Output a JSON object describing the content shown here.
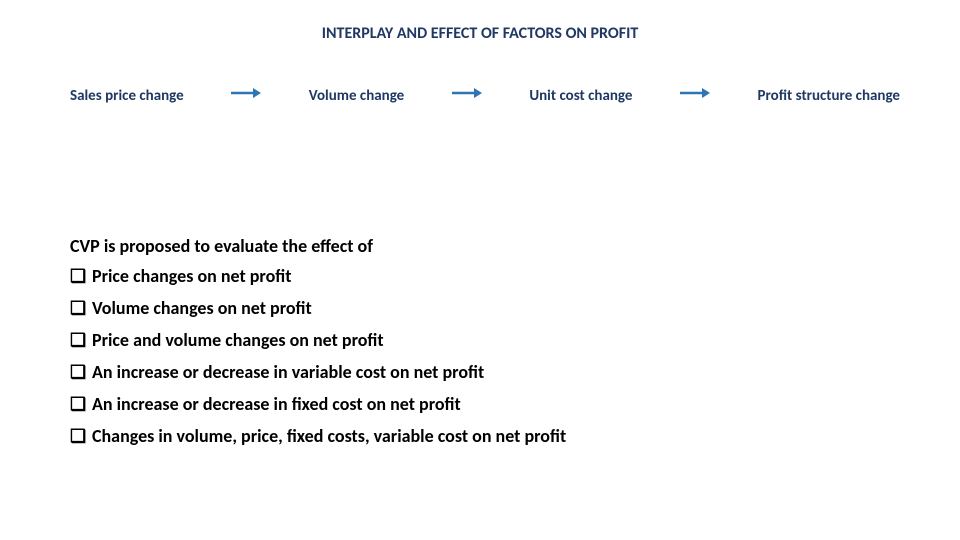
{
  "title": {
    "text": "INTERPLAY AND EFFECT OF FACTORS ON PROFIT",
    "color": "#1f3864",
    "fontsize": 16
  },
  "flow": {
    "items": [
      "Sales price change",
      "Volume change",
      "Unit cost change",
      "Profit structure change"
    ],
    "font_color": "#1f3864",
    "fontsize": 15,
    "arrow": {
      "stroke": "#2e75b6",
      "fill": "#2e75b6",
      "length": 30,
      "stroke_width": 2.5
    }
  },
  "body": {
    "intro": "CVP is proposed to evaluate the effect of",
    "bullets": [
      "Price changes on net profit",
      "Volume changes on net profit",
      "Price and volume changes on net  profit",
      "An increase or decrease in variable cost on net profit",
      "An increase or decrease in fixed cost on net profit",
      "Changes in volume, price, fixed costs, variable cost on net profit"
    ],
    "color": "#000000",
    "fontsize": 18,
    "line_spacing": 10
  },
  "background_color": "#ffffff"
}
